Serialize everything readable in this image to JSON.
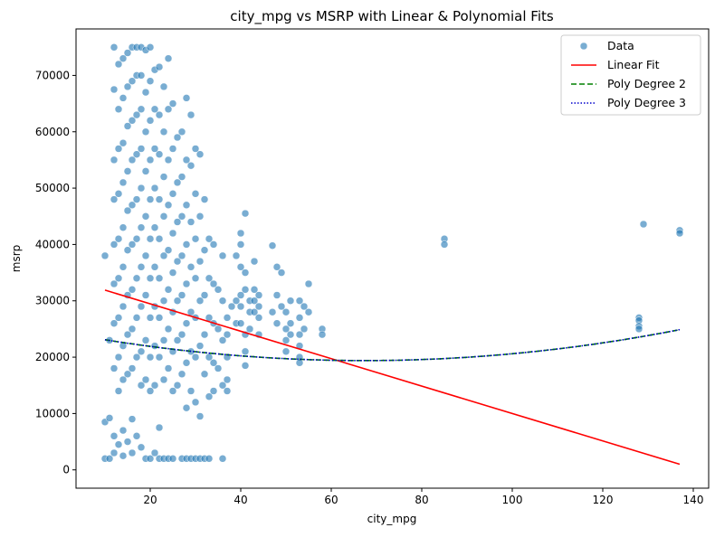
{
  "chart_data": {
    "type": "scatter",
    "title": "city_mpg vs MSRP with Linear & Polynomial Fits",
    "xlabel": "city_mpg",
    "ylabel": "msrp",
    "xlim": [
      3.6,
      143.4
    ],
    "ylim": [
      -3250,
      78250
    ],
    "x_ticks": [
      20,
      40,
      60,
      80,
      100,
      120,
      140
    ],
    "y_ticks": [
      0,
      10000,
      20000,
      30000,
      40000,
      50000,
      60000,
      70000
    ],
    "grid": false,
    "legend_placement": "top-right",
    "colors": {
      "data": "#1f77b4",
      "linear": "#ff0000",
      "poly2": "#008000",
      "poly3": "#0000cc"
    },
    "series": [
      {
        "name": "Data",
        "kind": "scatter",
        "points": [
          [
            10,
            2000
          ],
          [
            10,
            8500
          ],
          [
            10,
            38000
          ],
          [
            11,
            9200
          ],
          [
            11,
            23000
          ],
          [
            11,
            2000
          ],
          [
            12,
            75000
          ],
          [
            12,
            67500
          ],
          [
            12,
            55000
          ],
          [
            12,
            48000
          ],
          [
            12,
            40000
          ],
          [
            12,
            33000
          ],
          [
            12,
            26000
          ],
          [
            12,
            18000
          ],
          [
            12,
            6000
          ],
          [
            12,
            3000
          ],
          [
            13,
            72000
          ],
          [
            13,
            64000
          ],
          [
            13,
            57000
          ],
          [
            13,
            49000
          ],
          [
            13,
            41000
          ],
          [
            13,
            34000
          ],
          [
            13,
            27000
          ],
          [
            13,
            20000
          ],
          [
            13,
            14000
          ],
          [
            13,
            4500
          ],
          [
            14,
            73000
          ],
          [
            14,
            66000
          ],
          [
            14,
            58000
          ],
          [
            14,
            51000
          ],
          [
            14,
            43000
          ],
          [
            14,
            36000
          ],
          [
            14,
            29000
          ],
          [
            14,
            22000
          ],
          [
            14,
            16000
          ],
          [
            14,
            7000
          ],
          [
            14,
            2500
          ],
          [
            15,
            74000
          ],
          [
            15,
            68000
          ],
          [
            15,
            61000
          ],
          [
            15,
            53000
          ],
          [
            15,
            46000
          ],
          [
            15,
            39000
          ],
          [
            15,
            31000
          ],
          [
            15,
            24000
          ],
          [
            15,
            17000
          ],
          [
            15,
            5000
          ],
          [
            16,
            75000
          ],
          [
            16,
            69000
          ],
          [
            16,
            62000
          ],
          [
            16,
            55000
          ],
          [
            16,
            47000
          ],
          [
            16,
            40000
          ],
          [
            16,
            32000
          ],
          [
            16,
            25000
          ],
          [
            16,
            18000
          ],
          [
            16,
            9000
          ],
          [
            16,
            3000
          ],
          [
            17,
            75000
          ],
          [
            17,
            70000
          ],
          [
            17,
            63000
          ],
          [
            17,
            56000
          ],
          [
            17,
            48000
          ],
          [
            17,
            41000
          ],
          [
            17,
            34000
          ],
          [
            17,
            27000
          ],
          [
            17,
            20000
          ],
          [
            17,
            6000
          ],
          [
            18,
            75000
          ],
          [
            18,
            70000
          ],
          [
            18,
            64000
          ],
          [
            18,
            57000
          ],
          [
            18,
            50000
          ],
          [
            18,
            43000
          ],
          [
            18,
            36000
          ],
          [
            18,
            29000
          ],
          [
            18,
            21000
          ],
          [
            18,
            15000
          ],
          [
            18,
            4000
          ],
          [
            19,
            74500
          ],
          [
            19,
            67000
          ],
          [
            19,
            60000
          ],
          [
            19,
            53000
          ],
          [
            19,
            45000
          ],
          [
            19,
            38000
          ],
          [
            19,
            31000
          ],
          [
            19,
            23000
          ],
          [
            19,
            16000
          ],
          [
            19,
            2000
          ],
          [
            20,
            75000
          ],
          [
            20,
            69000
          ],
          [
            20,
            62000
          ],
          [
            20,
            55000
          ],
          [
            20,
            48000
          ],
          [
            20,
            41000
          ],
          [
            20,
            34000
          ],
          [
            20,
            27000
          ],
          [
            20,
            20000
          ],
          [
            20,
            14000
          ],
          [
            20,
            2000
          ],
          [
            21,
            71000
          ],
          [
            21,
            64000
          ],
          [
            21,
            57000
          ],
          [
            21,
            50000
          ],
          [
            21,
            43000
          ],
          [
            21,
            36000
          ],
          [
            21,
            29000
          ],
          [
            21,
            22000
          ],
          [
            21,
            15000
          ],
          [
            21,
            3000
          ],
          [
            22,
            71500
          ],
          [
            22,
            63000
          ],
          [
            22,
            56000
          ],
          [
            22,
            48000
          ],
          [
            22,
            41000
          ],
          [
            22,
            34000
          ],
          [
            22,
            27000
          ],
          [
            22,
            20000
          ],
          [
            22,
            7500
          ],
          [
            22,
            2000
          ],
          [
            23,
            68000
          ],
          [
            23,
            60000
          ],
          [
            23,
            52000
          ],
          [
            23,
            45000
          ],
          [
            23,
            38000
          ],
          [
            23,
            30000
          ],
          [
            23,
            23000
          ],
          [
            23,
            16000
          ],
          [
            23,
            2000
          ],
          [
            24,
            73000
          ],
          [
            24,
            64000
          ],
          [
            24,
            55000
          ],
          [
            24,
            47000
          ],
          [
            24,
            39000
          ],
          [
            24,
            32000
          ],
          [
            24,
            25000
          ],
          [
            24,
            18000
          ],
          [
            24,
            2000
          ],
          [
            25,
            65000
          ],
          [
            25,
            57000
          ],
          [
            25,
            49000
          ],
          [
            25,
            42000
          ],
          [
            25,
            35000
          ],
          [
            25,
            28000
          ],
          [
            25,
            21000
          ],
          [
            25,
            14000
          ],
          [
            25,
            2000
          ],
          [
            26,
            59000
          ],
          [
            26,
            51000
          ],
          [
            26,
            44000
          ],
          [
            26,
            37000
          ],
          [
            26,
            30000
          ],
          [
            26,
            23000
          ],
          [
            26,
            15000
          ],
          [
            27,
            60000
          ],
          [
            27,
            52000
          ],
          [
            27,
            45000
          ],
          [
            27,
            38000
          ],
          [
            27,
            31000
          ],
          [
            27,
            24000
          ],
          [
            27,
            17000
          ],
          [
            27,
            2000
          ],
          [
            28,
            66000
          ],
          [
            28,
            55000
          ],
          [
            28,
            47000
          ],
          [
            28,
            40000
          ],
          [
            28,
            33000
          ],
          [
            28,
            26000
          ],
          [
            28,
            19000
          ],
          [
            28,
            11000
          ],
          [
            28,
            2000
          ],
          [
            29,
            63000
          ],
          [
            29,
            54000
          ],
          [
            29,
            44000
          ],
          [
            29,
            36000
          ],
          [
            29,
            28000
          ],
          [
            29,
            21000
          ],
          [
            29,
            14000
          ],
          [
            29,
            2000
          ],
          [
            30,
            57000
          ],
          [
            30,
            49000
          ],
          [
            30,
            41000
          ],
          [
            30,
            34000
          ],
          [
            30,
            27000
          ],
          [
            30,
            20000
          ],
          [
            30,
            12000
          ],
          [
            30,
            2000
          ],
          [
            31,
            56000
          ],
          [
            31,
            45000
          ],
          [
            31,
            37000
          ],
          [
            31,
            30000
          ],
          [
            31,
            22000
          ],
          [
            31,
            9500
          ],
          [
            31,
            2000
          ],
          [
            32,
            48000
          ],
          [
            32,
            39000
          ],
          [
            32,
            31000
          ],
          [
            32,
            24000
          ],
          [
            32,
            17000
          ],
          [
            32,
            2000
          ],
          [
            33,
            41000
          ],
          [
            33,
            34000
          ],
          [
            33,
            27000
          ],
          [
            33,
            20000
          ],
          [
            33,
            13000
          ],
          [
            33,
            2000
          ],
          [
            34,
            40000
          ],
          [
            34,
            33000
          ],
          [
            34,
            26000
          ],
          [
            34,
            19000
          ],
          [
            34,
            14000
          ],
          [
            35,
            32000
          ],
          [
            35,
            25000
          ],
          [
            35,
            18000
          ],
          [
            36,
            38000
          ],
          [
            36,
            30000
          ],
          [
            36,
            23000
          ],
          [
            36,
            15000
          ],
          [
            36,
            2000
          ],
          [
            37,
            27000
          ],
          [
            37,
            24000
          ],
          [
            37,
            20000
          ],
          [
            37,
            16000
          ],
          [
            37,
            14000
          ],
          [
            38,
            29000
          ],
          [
            39,
            38000
          ],
          [
            39,
            30000
          ],
          [
            39,
            26000
          ],
          [
            40,
            42000
          ],
          [
            40,
            40000
          ],
          [
            40,
            36000
          ],
          [
            40,
            31000
          ],
          [
            40,
            29000
          ],
          [
            40,
            26000
          ],
          [
            41,
            45500
          ],
          [
            41,
            35000
          ],
          [
            41,
            32000
          ],
          [
            41,
            24000
          ],
          [
            41,
            21000
          ],
          [
            41,
            18500
          ],
          [
            42,
            30000
          ],
          [
            42,
            28000
          ],
          [
            42,
            25000
          ],
          [
            43,
            37000
          ],
          [
            43,
            32000
          ],
          [
            43,
            30000
          ],
          [
            43,
            28000
          ],
          [
            44,
            31000
          ],
          [
            44,
            29000
          ],
          [
            44,
            27000
          ],
          [
            44,
            24000
          ],
          [
            47,
            39800
          ],
          [
            47,
            28000
          ],
          [
            48,
            36000
          ],
          [
            48,
            31000
          ],
          [
            48,
            26000
          ],
          [
            49,
            35000
          ],
          [
            49,
            29000
          ],
          [
            50,
            28000
          ],
          [
            50,
            25000
          ],
          [
            50,
            23000
          ],
          [
            50,
            21000
          ],
          [
            51,
            30000
          ],
          [
            51,
            26000
          ],
          [
            51,
            24000
          ],
          [
            53,
            30000
          ],
          [
            53,
            27000
          ],
          [
            53,
            24000
          ],
          [
            53,
            22000
          ],
          [
            53,
            20000
          ],
          [
            53,
            19000
          ],
          [
            54,
            29000
          ],
          [
            54,
            25000
          ],
          [
            55,
            33000
          ],
          [
            55,
            28000
          ],
          [
            58,
            25000
          ],
          [
            58,
            24000
          ],
          [
            85,
            41000
          ],
          [
            85,
            40000
          ],
          [
            128,
            27000
          ],
          [
            128,
            26500
          ],
          [
            128,
            25500
          ],
          [
            128,
            25000
          ],
          [
            129,
            43600
          ],
          [
            137,
            42500
          ],
          [
            137,
            42000
          ]
        ]
      },
      {
        "name": "Linear Fit",
        "kind": "line",
        "style": "solid",
        "x": [
          10,
          137
        ],
        "y": [
          31900,
          1000
        ]
      },
      {
        "name": "Poly Degree 2",
        "kind": "line",
        "style": "dashed",
        "coef": [
          1.1286,
          -151.8,
          24500
        ],
        "x_range": [
          10,
          137
        ]
      },
      {
        "name": "Poly Degree 3",
        "kind": "line",
        "style": "dotted",
        "coef": [
          1.1286,
          -151.8,
          24500
        ],
        "x_range": [
          10,
          137
        ]
      }
    ]
  }
}
